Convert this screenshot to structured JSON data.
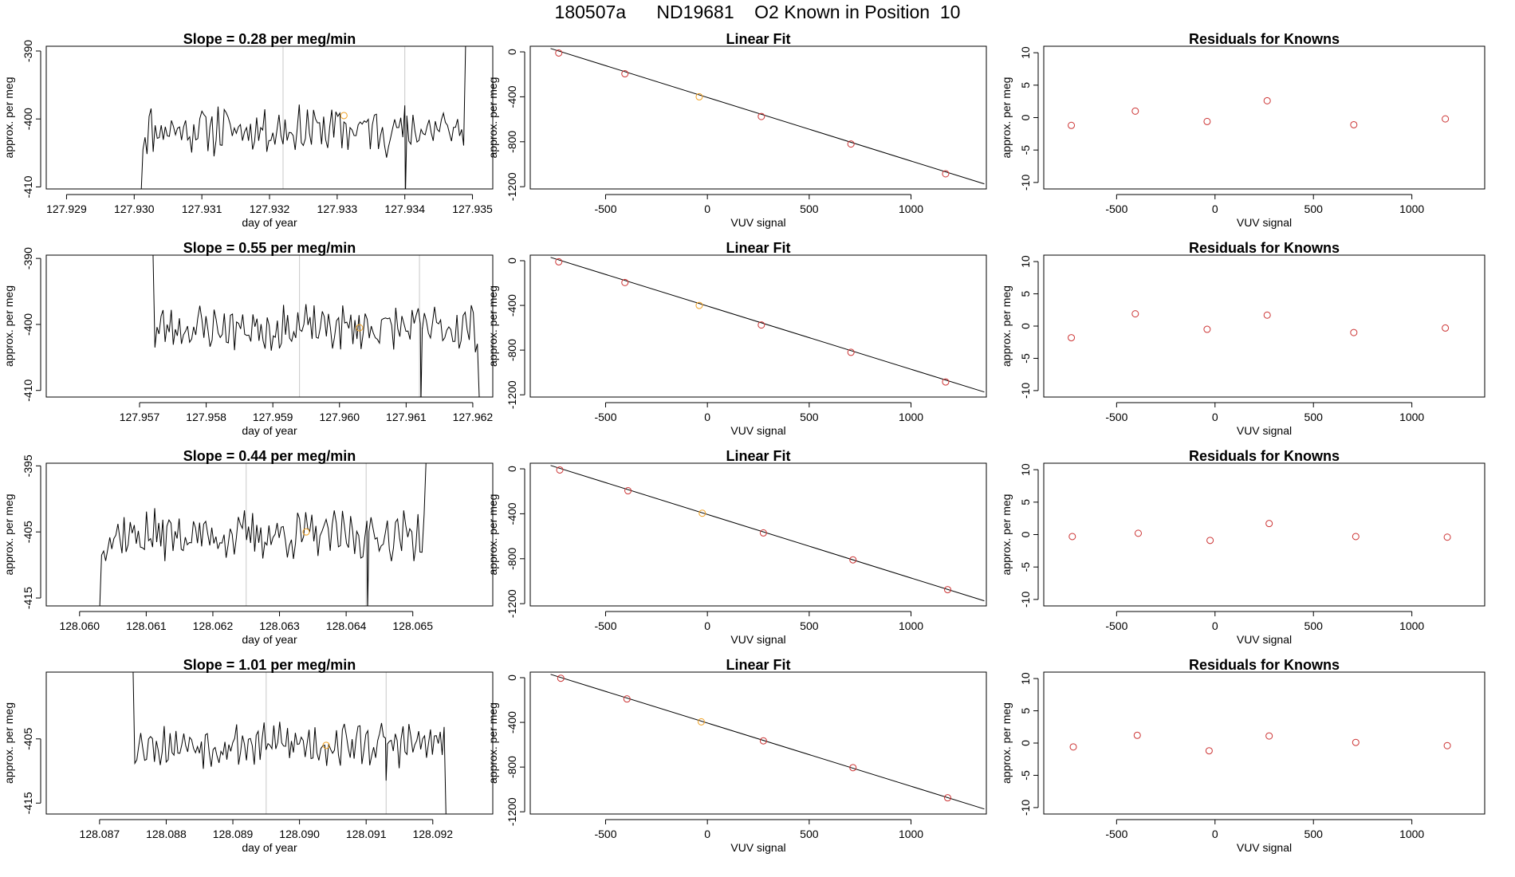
{
  "page_title": "180507a      ND19681    O2 Known in Position  10",
  "colors": {
    "line": "#000000",
    "point": "#cc3333",
    "highlight": "#f0a020",
    "marker_line": "#c8c8c8",
    "frame": "#000000"
  },
  "chart_data": [
    {
      "type": "line",
      "row": 0,
      "col": 0,
      "title": "Slope =  0.28  per meg/min",
      "xlabel": "day of year",
      "ylabel": "approx. per meg",
      "xlim": [
        127.9287,
        127.9353
      ],
      "ylim": [
        -410.3,
        -389.3
      ],
      "xticks": [
        127.929,
        127.93,
        127.931,
        127.932,
        127.933,
        127.934,
        127.935
      ],
      "xtick_labels": [
        "127.929",
        "127.930",
        "127.931",
        "127.932",
        "127.933",
        "127.934",
        "127.935"
      ],
      "yticks": [
        -410,
        -400,
        -390
      ],
      "ytick_labels": [
        "-410",
        "-400",
        "-390"
      ],
      "vlines": [
        127.9322,
        127.934
      ],
      "series": [
        {
          "x_start": 127.9301,
          "x_end": 127.9349,
          "seed": 11,
          "base": -401.5,
          "amp": 3.0,
          "start_val": -411.5,
          "end_val": -388.0,
          "drop_at": 127.934,
          "drop_val": -411.0
        }
      ],
      "highlight": {
        "x": 127.9331,
        "y": -399.5
      }
    },
    {
      "type": "scatter",
      "row": 0,
      "col": 1,
      "title": "Linear Fit",
      "xlabel": "VUV signal",
      "ylabel": "approx. per meg",
      "xlim": [
        -870,
        1370
      ],
      "ylim": [
        -1220,
        50
      ],
      "xticks": [
        -500,
        0,
        500,
        1000
      ],
      "xtick_labels": [
        "-500",
        "0",
        "500",
        "1000"
      ],
      "yticks": [
        -1200,
        -800,
        -400,
        0
      ],
      "ytick_labels": [
        "-1200",
        "-800",
        "-400",
        "0"
      ],
      "fit_line": [
        [
          -770,
          30
        ],
        [
          1360,
          -1175
        ]
      ],
      "points": [
        {
          "x": -730,
          "y": -10
        },
        {
          "x": -405,
          "y": -195
        },
        {
          "x": -40,
          "y": -400,
          "highlight": true
        },
        {
          "x": 265,
          "y": -575
        },
        {
          "x": 705,
          "y": -820
        },
        {
          "x": 1170,
          "y": -1085
        }
      ]
    },
    {
      "type": "scatter",
      "row": 0,
      "col": 2,
      "title": "Residuals for Knowns",
      "xlabel": "VUV signal",
      "ylabel": "approx. per meg",
      "xlim": [
        -870,
        1370
      ],
      "ylim": [
        -11,
        11
      ],
      "xticks": [
        -500,
        0,
        500,
        1000
      ],
      "xtick_labels": [
        "-500",
        "0",
        "500",
        "1000"
      ],
      "yticks": [
        -10,
        -5,
        0,
        5,
        10
      ],
      "ytick_labels": [
        "-10",
        "-5",
        "0",
        "5",
        "10"
      ],
      "points": [
        {
          "x": -730,
          "y": -1.2
        },
        {
          "x": -405,
          "y": 1.0
        },
        {
          "x": -40,
          "y": -0.6
        },
        {
          "x": 265,
          "y": 2.6
        },
        {
          "x": 705,
          "y": -1.1
        },
        {
          "x": 1170,
          "y": -0.2
        }
      ]
    },
    {
      "type": "line",
      "row": 1,
      "col": 0,
      "title": "Slope =  0.55  per meg/min",
      "xlabel": "day of year",
      "ylabel": "approx. per meg",
      "xlim": [
        127.9556,
        127.9623
      ],
      "ylim": [
        -411,
        -389.5
      ],
      "xticks": [
        127.957,
        127.958,
        127.959,
        127.96,
        127.961,
        127.962
      ],
      "xtick_labels": [
        "127.957",
        "127.958",
        "127.959",
        "127.960",
        "127.961",
        "127.962"
      ],
      "yticks": [
        -410,
        -400,
        -390
      ],
      "ytick_labels": [
        "-410",
        "-400",
        "-390"
      ],
      "vlines": [
        127.9594,
        127.9612
      ],
      "series": [
        {
          "x_start": 127.9572,
          "x_end": 127.9621,
          "seed": 23,
          "base": -400.5,
          "amp": 2.8,
          "start_val": -388.0,
          "end_val": -412.0,
          "drop_at": 127.9612,
          "drop_val": -412.0
        }
      ],
      "highlight": {
        "x": 127.9603,
        "y": -400.5
      }
    },
    {
      "type": "scatter",
      "row": 1,
      "col": 1,
      "title": "Linear Fit",
      "xlabel": "VUV signal",
      "ylabel": "approx. per meg",
      "xlim": [
        -870,
        1370
      ],
      "ylim": [
        -1220,
        50
      ],
      "xticks": [
        -500,
        0,
        500,
        1000
      ],
      "xtick_labels": [
        "-500",
        "0",
        "500",
        "1000"
      ],
      "yticks": [
        -1200,
        -800,
        -400,
        0
      ],
      "ytick_labels": [
        "-1200",
        "-800",
        "-400",
        "0"
      ],
      "fit_line": [
        [
          -770,
          30
        ],
        [
          1360,
          -1175
        ]
      ],
      "points": [
        {
          "x": -730,
          "y": -10
        },
        {
          "x": -405,
          "y": -195
        },
        {
          "x": -40,
          "y": -400,
          "highlight": true
        },
        {
          "x": 265,
          "y": -575
        },
        {
          "x": 705,
          "y": -820
        },
        {
          "x": 1170,
          "y": -1085
        }
      ]
    },
    {
      "type": "scatter",
      "row": 1,
      "col": 2,
      "title": "Residuals for Knowns",
      "xlabel": "VUV signal",
      "ylabel": "approx. per meg",
      "xlim": [
        -870,
        1370
      ],
      "ylim": [
        -11,
        11
      ],
      "xticks": [
        -500,
        0,
        500,
        1000
      ],
      "xtick_labels": [
        "-500",
        "0",
        "500",
        "1000"
      ],
      "yticks": [
        -10,
        -5,
        0,
        5,
        10
      ],
      "ytick_labels": [
        "-10",
        "-5",
        "0",
        "5",
        "10"
      ],
      "points": [
        {
          "x": -730,
          "y": -1.8
        },
        {
          "x": -405,
          "y": 1.9
        },
        {
          "x": -40,
          "y": -0.5
        },
        {
          "x": 265,
          "y": 1.7
        },
        {
          "x": 705,
          "y": -1.0
        },
        {
          "x": 1170,
          "y": -0.3
        }
      ]
    },
    {
      "type": "line",
      "row": 2,
      "col": 0,
      "title": "Slope =  0.44  per meg/min",
      "xlabel": "day of year",
      "ylabel": "approx. per meg",
      "xlim": [
        128.0595,
        128.0662
      ],
      "ylim": [
        -416.2,
        -394.6
      ],
      "xticks": [
        128.06,
        128.061,
        128.062,
        128.063,
        128.064,
        128.065
      ],
      "xtick_labels": [
        "128.060",
        "128.061",
        "128.062",
        "128.063",
        "128.064",
        "128.065"
      ],
      "yticks": [
        -415,
        -405,
        -395
      ],
      "ytick_labels": [
        "-415",
        "-405",
        "-395"
      ],
      "vlines": [
        128.0625,
        128.0643
      ],
      "series": [
        {
          "x_start": 128.0603,
          "x_end": 128.0652,
          "seed": 37,
          "base": -405.5,
          "amp": 3.0,
          "start_val": -417.0,
          "end_val": -394.0,
          "drop_at": 128.0643,
          "drop_val": -417.0
        }
      ],
      "highlight": {
        "x": 128.0634,
        "y": -405.0
      }
    },
    {
      "type": "scatter",
      "row": 2,
      "col": 1,
      "title": "Linear Fit",
      "xlabel": "VUV signal",
      "ylabel": "approx. per meg",
      "xlim": [
        -870,
        1370
      ],
      "ylim": [
        -1220,
        50
      ],
      "xticks": [
        -500,
        0,
        500,
        1000
      ],
      "xtick_labels": [
        "-500",
        "0",
        "500",
        "1000"
      ],
      "yticks": [
        -1200,
        -800,
        -400,
        0
      ],
      "ytick_labels": [
        "-1200",
        "-800",
        "-400",
        "0"
      ],
      "fit_line": [
        [
          -770,
          30
        ],
        [
          1360,
          -1175
        ]
      ],
      "points": [
        {
          "x": -725,
          "y": -10
        },
        {
          "x": -390,
          "y": -195
        },
        {
          "x": -25,
          "y": -395,
          "highlight": true
        },
        {
          "x": 275,
          "y": -570
        },
        {
          "x": 715,
          "y": -810
        },
        {
          "x": 1180,
          "y": -1075
        }
      ]
    },
    {
      "type": "scatter",
      "row": 2,
      "col": 2,
      "title": "Residuals for Knowns",
      "xlabel": "VUV signal",
      "ylabel": "approx. per meg",
      "xlim": [
        -870,
        1370
      ],
      "ylim": [
        -11,
        11
      ],
      "xticks": [
        -500,
        0,
        500,
        1000
      ],
      "xtick_labels": [
        "-500",
        "0",
        "500",
        "1000"
      ],
      "yticks": [
        -10,
        -5,
        0,
        5,
        10
      ],
      "ytick_labels": [
        "-10",
        "-5",
        "0",
        "5",
        "10"
      ],
      "points": [
        {
          "x": -725,
          "y": -0.3
        },
        {
          "x": -390,
          "y": 0.2
        },
        {
          "x": -25,
          "y": -0.9
        },
        {
          "x": 275,
          "y": 1.7
        },
        {
          "x": 715,
          "y": -0.3
        },
        {
          "x": 1180,
          "y": -0.4
        }
      ]
    },
    {
      "type": "line",
      "row": 3,
      "col": 0,
      "title": "Slope =  1.01  per meg/min",
      "xlabel": "day of year",
      "ylabel": "approx. per meg",
      "xlim": [
        128.0862,
        128.0929
      ],
      "ylim": [
        -416.7,
        -394.6
      ],
      "xticks": [
        128.087,
        128.088,
        128.089,
        128.09,
        128.091,
        128.092
      ],
      "xtick_labels": [
        "128.087",
        "128.088",
        "128.089",
        "128.090",
        "128.091",
        "128.092"
      ],
      "yticks": [
        -415,
        -405
      ],
      "ytick_labels": [
        "-415",
        "-405"
      ],
      "vlines": [
        128.0895,
        128.0913
      ],
      "series": [
        {
          "x_start": 128.0875,
          "x_end": 128.0922,
          "seed": 53,
          "base": -405.8,
          "amp": 2.8,
          "start_val": -393.0,
          "end_val": -418.0,
          "drop_at": 128.0913,
          "drop_val": -411.5
        }
      ],
      "highlight": {
        "x": 128.0904,
        "y": -406.0
      }
    },
    {
      "type": "scatter",
      "row": 3,
      "col": 1,
      "title": "Linear Fit",
      "xlabel": "VUV signal",
      "ylabel": "approx. per meg",
      "xlim": [
        -870,
        1370
      ],
      "ylim": [
        -1220,
        50
      ],
      "xticks": [
        -500,
        0,
        500,
        1000
      ],
      "xtick_labels": [
        "-500",
        "0",
        "500",
        "1000"
      ],
      "yticks": [
        -1200,
        -800,
        -400,
        0
      ],
      "ytick_labels": [
        "-1200",
        "-800",
        "-400",
        "0"
      ],
      "fit_line": [
        [
          -770,
          30
        ],
        [
          1360,
          -1175
        ]
      ],
      "points": [
        {
          "x": -720,
          "y": -5
        },
        {
          "x": -395,
          "y": -190
        },
        {
          "x": -30,
          "y": -395,
          "highlight": true
        },
        {
          "x": 275,
          "y": -565
        },
        {
          "x": 715,
          "y": -805
        },
        {
          "x": 1180,
          "y": -1075
        }
      ]
    },
    {
      "type": "scatter",
      "row": 3,
      "col": 2,
      "title": "Residuals for Knowns",
      "xlabel": "VUV signal",
      "ylabel": "approx. per meg",
      "xlim": [
        -870,
        1370
      ],
      "ylim": [
        -11,
        11
      ],
      "xticks": [
        -500,
        0,
        500,
        1000
      ],
      "xtick_labels": [
        "-500",
        "0",
        "500",
        "1000"
      ],
      "yticks": [
        -10,
        -5,
        0,
        5,
        10
      ],
      "ytick_labels": [
        "-10",
        "-5",
        "0",
        "5",
        "10"
      ],
      "points": [
        {
          "x": -720,
          "y": -0.6
        },
        {
          "x": -395,
          "y": 1.2
        },
        {
          "x": -30,
          "y": -1.2
        },
        {
          "x": 275,
          "y": 1.1
        },
        {
          "x": 715,
          "y": 0.1
        },
        {
          "x": 1180,
          "y": -0.4
        }
      ]
    }
  ]
}
